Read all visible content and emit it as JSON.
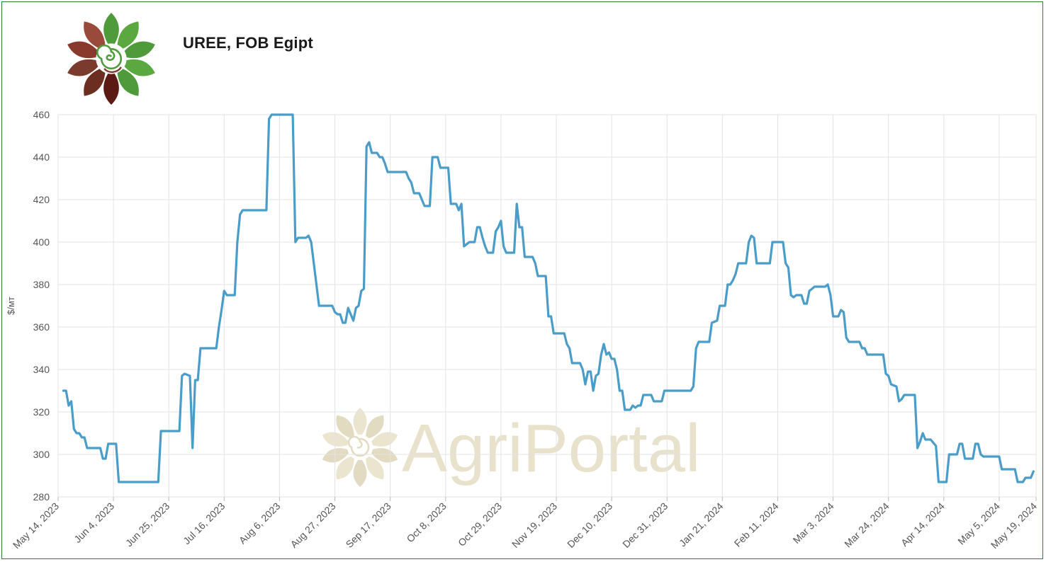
{
  "header": {
    "title": "UREE, FOB Egipt"
  },
  "watermark": {
    "text": "AgriPortal"
  },
  "colors": {
    "line": "#4a9cc9",
    "grid": "#e3e3e3",
    "frame": "#2e7d32",
    "watermark": "#e8e2cc"
  },
  "chart_data": {
    "type": "line",
    "title": "UREE, FOB Egipt",
    "xlabel": "",
    "ylabel": "$/мт",
    "ylim": [
      280,
      460
    ],
    "yticks": [
      280,
      300,
      320,
      340,
      360,
      380,
      400,
      420,
      440,
      460
    ],
    "xlim": [
      "2023-05-14",
      "2024-05-19"
    ],
    "xticks": [
      "May 14, 2023",
      "Jun 4, 2023",
      "Jun 25, 2023",
      "Jul 16, 2023",
      "Aug 6, 2023",
      "Aug 27, 2023",
      "Sep 17, 2023",
      "Oct 8, 2023",
      "Oct 29, 2023",
      "Nov 19, 2023",
      "Dec 10, 2023",
      "Dec 31, 2023",
      "Jan 21, 2024",
      "Feb 11, 2024",
      "Mar 3, 2024",
      "Mar 24, 2024",
      "Apr 14, 2024",
      "May 5, 2024",
      "May 19, 2024"
    ],
    "grid": true,
    "series": [
      {
        "name": "",
        "points": [
          [
            "2023-05-16",
            330
          ],
          [
            "2023-05-17",
            330
          ],
          [
            "2023-05-18",
            323
          ],
          [
            "2023-05-19",
            325
          ],
          [
            "2023-05-20",
            312
          ],
          [
            "2023-05-21",
            310
          ],
          [
            "2023-05-22",
            310
          ],
          [
            "2023-05-23",
            308
          ],
          [
            "2023-05-24",
            308
          ],
          [
            "2023-05-25",
            303
          ],
          [
            "2023-05-26",
            303
          ],
          [
            "2023-05-30",
            303
          ],
          [
            "2023-05-31",
            298
          ],
          [
            "2023-06-01",
            298
          ],
          [
            "2023-06-02",
            305
          ],
          [
            "2023-06-03",
            305
          ],
          [
            "2023-06-05",
            305
          ],
          [
            "2023-06-06",
            287
          ],
          [
            "2023-06-21",
            287
          ],
          [
            "2023-06-22",
            311
          ],
          [
            "2023-06-29",
            311
          ],
          [
            "2023-06-30",
            337
          ],
          [
            "2023-07-01",
            338
          ],
          [
            "2023-07-03",
            337
          ],
          [
            "2023-07-04",
            303
          ],
          [
            "2023-07-05",
            335
          ],
          [
            "2023-07-06",
            335
          ],
          [
            "2023-07-07",
            350
          ],
          [
            "2023-07-08",
            350
          ],
          [
            "2023-07-13",
            350
          ],
          [
            "2023-07-14",
            360
          ],
          [
            "2023-07-15",
            368
          ],
          [
            "2023-07-16",
            377
          ],
          [
            "2023-07-17",
            375
          ],
          [
            "2023-07-20",
            375
          ],
          [
            "2023-07-21",
            400
          ],
          [
            "2023-07-22",
            413
          ],
          [
            "2023-07-23",
            415
          ],
          [
            "2023-08-01",
            415
          ],
          [
            "2023-08-02",
            458
          ],
          [
            "2023-08-03",
            460
          ],
          [
            "2023-08-11",
            460
          ],
          [
            "2023-08-12",
            400
          ],
          [
            "2023-08-13",
            402
          ],
          [
            "2023-08-16",
            402
          ],
          [
            "2023-08-17",
            403
          ],
          [
            "2023-08-18",
            400
          ],
          [
            "2023-08-19",
            390
          ],
          [
            "2023-08-21",
            370
          ],
          [
            "2023-08-26",
            370
          ],
          [
            "2023-08-27",
            367
          ],
          [
            "2023-08-28",
            366
          ],
          [
            "2023-08-29",
            366
          ],
          [
            "2023-08-30",
            362
          ],
          [
            "2023-08-31",
            362
          ],
          [
            "2023-09-01",
            369
          ],
          [
            "2023-09-02",
            366
          ],
          [
            "2023-09-03",
            363
          ],
          [
            "2023-09-04",
            369
          ],
          [
            "2023-09-05",
            370
          ],
          [
            "2023-09-06",
            377
          ],
          [
            "2023-09-07",
            378
          ],
          [
            "2023-09-08",
            445
          ],
          [
            "2023-09-09",
            447
          ],
          [
            "2023-09-10",
            442
          ],
          [
            "2023-09-12",
            442
          ],
          [
            "2023-09-13",
            440
          ],
          [
            "2023-09-14",
            440
          ],
          [
            "2023-09-15",
            437
          ],
          [
            "2023-09-16",
            433
          ],
          [
            "2023-09-23",
            433
          ],
          [
            "2023-09-24",
            430
          ],
          [
            "2023-09-25",
            428
          ],
          [
            "2023-09-26",
            423
          ],
          [
            "2023-09-28",
            423
          ],
          [
            "2023-09-29",
            420
          ],
          [
            "2023-09-30",
            417
          ],
          [
            "2023-10-02",
            417
          ],
          [
            "2023-10-03",
            440
          ],
          [
            "2023-10-05",
            440
          ],
          [
            "2023-10-06",
            435
          ],
          [
            "2023-10-09",
            435
          ],
          [
            "2023-10-10",
            418
          ],
          [
            "2023-10-12",
            418
          ],
          [
            "2023-10-13",
            415
          ],
          [
            "2023-10-14",
            418
          ],
          [
            "2023-10-15",
            398
          ],
          [
            "2023-10-16",
            399
          ],
          [
            "2023-10-17",
            400
          ],
          [
            "2023-10-19",
            400
          ],
          [
            "2023-10-20",
            407
          ],
          [
            "2023-10-21",
            407
          ],
          [
            "2023-10-22",
            402
          ],
          [
            "2023-10-23",
            398
          ],
          [
            "2023-10-24",
            395
          ],
          [
            "2023-10-26",
            395
          ],
          [
            "2023-10-27",
            405
          ],
          [
            "2023-10-28",
            407
          ],
          [
            "2023-10-29",
            410
          ],
          [
            "2023-10-30",
            398
          ],
          [
            "2023-10-31",
            395
          ],
          [
            "2023-11-03",
            395
          ],
          [
            "2023-11-04",
            418
          ],
          [
            "2023-11-05",
            407
          ],
          [
            "2023-11-06",
            407
          ],
          [
            "2023-11-07",
            393
          ],
          [
            "2023-11-10",
            393
          ],
          [
            "2023-11-11",
            390
          ],
          [
            "2023-11-12",
            384
          ],
          [
            "2023-11-15",
            384
          ],
          [
            "2023-11-16",
            365
          ],
          [
            "2023-11-17",
            365
          ],
          [
            "2023-11-18",
            357
          ],
          [
            "2023-11-22",
            357
          ],
          [
            "2023-11-23",
            352
          ],
          [
            "2023-11-24",
            350
          ],
          [
            "2023-11-25",
            343
          ],
          [
            "2023-11-28",
            343
          ],
          [
            "2023-11-29",
            340
          ],
          [
            "2023-11-30",
            333
          ],
          [
            "2023-12-01",
            339
          ],
          [
            "2023-12-02",
            339
          ],
          [
            "2023-12-03",
            330
          ],
          [
            "2023-12-04",
            337
          ],
          [
            "2023-12-05",
            338
          ],
          [
            "2023-12-06",
            347
          ],
          [
            "2023-12-07",
            352
          ],
          [
            "2023-12-08",
            347
          ],
          [
            "2023-12-09",
            348
          ],
          [
            "2023-12-10",
            345
          ],
          [
            "2023-12-11",
            345
          ],
          [
            "2023-12-12",
            340
          ],
          [
            "2023-12-13",
            330
          ],
          [
            "2023-12-14",
            330
          ],
          [
            "2023-12-15",
            321
          ],
          [
            "2023-12-17",
            321
          ],
          [
            "2023-12-18",
            323
          ],
          [
            "2023-12-19",
            322
          ],
          [
            "2023-12-20",
            323
          ],
          [
            "2023-12-21",
            323
          ],
          [
            "2023-12-22",
            328
          ],
          [
            "2023-12-25",
            328
          ],
          [
            "2023-12-26",
            325
          ],
          [
            "2023-12-29",
            325
          ],
          [
            "2023-12-30",
            330
          ],
          [
            "2024-01-09",
            330
          ],
          [
            "2024-01-10",
            332
          ],
          [
            "2024-01-11",
            350
          ],
          [
            "2024-01-12",
            353
          ],
          [
            "2024-01-16",
            353
          ],
          [
            "2024-01-17",
            362
          ],
          [
            "2024-01-19",
            363
          ],
          [
            "2024-01-20",
            370
          ],
          [
            "2024-01-22",
            370
          ],
          [
            "2024-01-23",
            380
          ],
          [
            "2024-01-24",
            380
          ],
          [
            "2024-01-25",
            382
          ],
          [
            "2024-01-26",
            385
          ],
          [
            "2024-01-27",
            390
          ],
          [
            "2024-01-30",
            390
          ],
          [
            "2024-01-31",
            400
          ],
          [
            "2024-02-01",
            403
          ],
          [
            "2024-02-02",
            402
          ],
          [
            "2024-02-03",
            390
          ],
          [
            "2024-02-08",
            390
          ],
          [
            "2024-02-09",
            400
          ],
          [
            "2024-02-13",
            400
          ],
          [
            "2024-02-14",
            390
          ],
          [
            "2024-02-15",
            388
          ],
          [
            "2024-02-16",
            375
          ],
          [
            "2024-02-17",
            374
          ],
          [
            "2024-02-18",
            375
          ],
          [
            "2024-02-20",
            375
          ],
          [
            "2024-02-21",
            371
          ],
          [
            "2024-02-22",
            371
          ],
          [
            "2024-02-23",
            377
          ],
          [
            "2024-02-25",
            379
          ],
          [
            "2024-02-29",
            379
          ],
          [
            "2024-03-01",
            380
          ],
          [
            "2024-03-02",
            375
          ],
          [
            "2024-03-03",
            365
          ],
          [
            "2024-03-05",
            365
          ],
          [
            "2024-03-06",
            368
          ],
          [
            "2024-03-07",
            367
          ],
          [
            "2024-03-08",
            355
          ],
          [
            "2024-03-09",
            353
          ],
          [
            "2024-03-13",
            353
          ],
          [
            "2024-03-14",
            350
          ],
          [
            "2024-03-15",
            350
          ],
          [
            "2024-03-16",
            347
          ],
          [
            "2024-03-22",
            347
          ],
          [
            "2024-03-23",
            338
          ],
          [
            "2024-03-24",
            337
          ],
          [
            "2024-03-25",
            333
          ],
          [
            "2024-03-27",
            332
          ],
          [
            "2024-03-28",
            325
          ],
          [
            "2024-03-29",
            326
          ],
          [
            "2024-03-30",
            328
          ],
          [
            "2024-04-03",
            328
          ],
          [
            "2024-04-04",
            303
          ],
          [
            "2024-04-05",
            306
          ],
          [
            "2024-04-06",
            310
          ],
          [
            "2024-04-07",
            307
          ],
          [
            "2024-04-09",
            307
          ],
          [
            "2024-04-11",
            304
          ],
          [
            "2024-04-12",
            287
          ],
          [
            "2024-04-15",
            287
          ],
          [
            "2024-04-16",
            300
          ],
          [
            "2024-04-19",
            300
          ],
          [
            "2024-04-20",
            305
          ],
          [
            "2024-04-21",
            305
          ],
          [
            "2024-04-22",
            298
          ],
          [
            "2024-04-25",
            298
          ],
          [
            "2024-04-26",
            305
          ],
          [
            "2024-04-27",
            305
          ],
          [
            "2024-04-28",
            300
          ],
          [
            "2024-04-29",
            299
          ],
          [
            "2024-05-05",
            299
          ],
          [
            "2024-05-06",
            293
          ],
          [
            "2024-05-11",
            293
          ],
          [
            "2024-05-12",
            287
          ],
          [
            "2024-05-14",
            287
          ],
          [
            "2024-05-15",
            289
          ],
          [
            "2024-05-17",
            289
          ],
          [
            "2024-05-18",
            292
          ]
        ]
      }
    ]
  }
}
